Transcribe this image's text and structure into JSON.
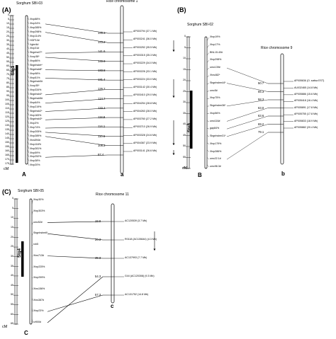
{
  "panels": [
    {
      "id": "A",
      "label": "(A)",
      "sorghum_title": "Sorghum SBI-03",
      "rice_title": "Rice chromosome 1",
      "sorghum_letter": "A",
      "rice_letter": "a",
      "qtl_label": "Stg1",
      "cm_unit": "cM",
      "cm_ticks": [
        "0",
        "5",
        "10",
        "15",
        "20",
        "25",
        "30",
        "35",
        "40",
        "45",
        "50",
        "55",
        "60",
        "65",
        "70",
        "75",
        "80",
        "85",
        "90",
        "95",
        "100",
        "105",
        "110",
        "115",
        "120",
        "125",
        "130",
        "135",
        "140",
        "145",
        "150",
        "155",
        "160",
        "165",
        "170",
        "175"
      ],
      "sorghum_markers": [
        "Xtxp88%",
        "Xtxp34%",
        "Xtxp285%",
        "Xtxp298%",
        "Xtxp114%",
        "HGP10#",
        "Xgbri4#",
        "Xtxp31#",
        "Sbgnhs07*",
        "Xcup38*",
        "Xtxp86%",
        "Sbgnhsbrt*",
        "Sbgnhsb8*",
        "Xtxp98%",
        "Xtxp51%",
        "Sbgnhsb0#",
        "Xcup35*",
        "Xtxp334%",
        "Sbgnhsb4*",
        "Sbgnhsb5#",
        "Xtxp64%",
        "Xtxp219%",
        "Sbgnhsb2*",
        "Xtxp183%",
        "Sbgnhsb3*",
        "Xtxp3%",
        "Xtxp74%",
        "Xtxp205%",
        "Xtxp289%",
        "Xtxs594#",
        "Xtxp116%",
        "Xtxp281%",
        "Xtxp59%",
        "Xtxp252%",
        "Xtxp38%",
        "Xtxp20%"
      ],
      "rice_positions": [
        "145.3",
        "143.2",
        "141.6",
        "140.9",
        "133.8",
        "131.4",
        "126.2",
        "124.7",
        "122.1",
        "118.9",
        "114.1",
        "110.6",
        "106.2",
        "97.4"
      ],
      "rice_bacs": [
        "AP003794 (37.1 Mb)",
        "AP003241 (36.0 Mb)",
        "AP003252 (35.5 Mb)",
        "AP003315 (35.3 Mb)",
        "AP003229 (34.0 Mb)",
        "AP003226 (33.1 Mb)",
        "AP003224 (33.0 Mb)",
        "AP003142 (30.4 Mb)",
        "AP003410 (29.0 Mb)",
        "AP004254 (28.8 Mb)",
        "AP004263 (28.0 Mb)",
        "AP003760 (27.2 Mb)",
        "AP003710 (26.9 Mb)",
        "AP003328 (24.6 Mb)",
        "AP004367 (23.9 Mb)",
        "AP003141 (26.6 Mb)"
      ]
    },
    {
      "id": "B",
      "label": "(B)",
      "sorghum_title": "Sorghum SBI-02",
      "rice_title": "Rice chromosome 9",
      "sorghum_letter": "B",
      "rice_letter": "b",
      "qtl_label": "Stg3",
      "cm_unit": "cM",
      "cm_ticks": [
        "0",
        "5",
        "10",
        "15",
        "20",
        "25",
        "30",
        "35",
        "40",
        "45",
        "50",
        "55",
        "60"
      ],
      "sorghum_markers": [
        "Xtxp19%",
        "Xtxp17%",
        "BNL15.40#",
        "Xtxp298%",
        "umc139#",
        "Xtxs482*",
        "Sbgnhsbm44*",
        "umc5#",
        "Xtxp75%",
        "Sbgnhsbm36*",
        "Xtxp56%",
        "umc116#",
        "gap84%",
        "Sbgnhsbm31*",
        "Xtxp179%",
        "Xtxp286%",
        "umc22.1#",
        "umc98.3#"
      ],
      "rice_positions": [
        "50.7",
        "55.3",
        "58.3",
        "63.0",
        "63.6",
        "69.2",
        "79.1"
      ],
      "rice_bacs": [
        "AP005636 (O. sativa EST)",
        "AU032465 (14.8 Mb)",
        "AP005886 (15.6 Mb)",
        "AP005418 (16.4 Mb)",
        "AP005891 (17.8 Mb)",
        "AP005755 (17.8 Mb)",
        "AP005833 (18.9 Mb)",
        "AP005882 (20.4 Mb)"
      ]
    },
    {
      "id": "C",
      "label": "(C)",
      "sorghum_title": "Sorghum SBI-05",
      "rice_title": "Rice chromosome 11",
      "sorghum_letter": "C",
      "rice_letter": "c",
      "qtl_label": "Stg4",
      "cm_unit": "cM",
      "cm_ticks": [
        "0",
        "5",
        "10",
        "15",
        "20",
        "25",
        "30",
        "35",
        "40",
        "45",
        "50",
        "55",
        "60",
        "65"
      ],
      "sorghum_markers": [
        "Xtxp30%",
        "Xtxp303%",
        "umc52#",
        "Sbgnhsbm6*",
        "rcb5",
        "Xtxs713#",
        "Xtxp225%",
        "Xtxp299%",
        "Xtxs156%",
        "Xtxs387#",
        "Xtxp23%",
        "rz900#"
      ],
      "rice_positions": [
        "19.8",
        "20.3",
        "45.3",
        "54.3",
        "57.3"
      ],
      "rice_bacs": [
        "AC120539 (3.7 Mb)",
        "R0118 (AC126644) (4.3 Mb)",
        "AC137993 (7.7 Mb)",
        "G44 (AC120308) (9.3 Mb)",
        "AC131752 (14.8 Mb)"
      ]
    }
  ]
}
